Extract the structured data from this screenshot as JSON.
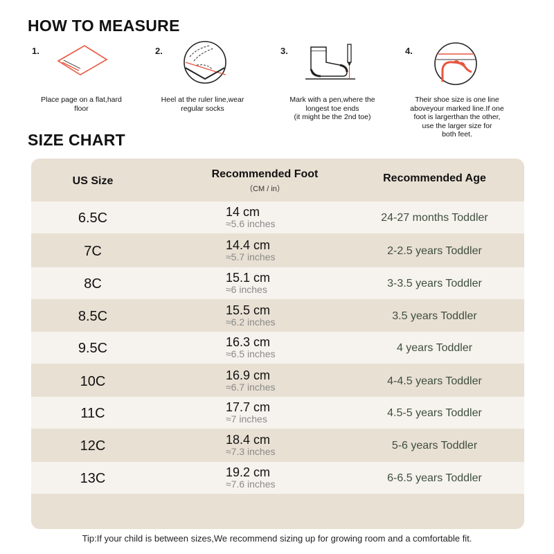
{
  "how_to_measure": {
    "title": "HOW TO MEASURE",
    "steps": [
      {
        "num": "1.",
        "icon": "paper-on-floor-icon",
        "lines": [
          "Place page on a flat,hard",
          "floor"
        ]
      },
      {
        "num": "2.",
        "icon": "heel-on-ruler-icon",
        "lines": [
          "Heel at the ruler line,wear",
          "regular socks"
        ]
      },
      {
        "num": "3.",
        "icon": "sock-and-pen-icon",
        "lines": [
          "Mark with a pen,where the",
          "longest toe ends",
          "(it might be the 2nd toe)"
        ]
      },
      {
        "num": "4.",
        "icon": "toe-line-icon",
        "lines": [
          "Their shoe size is one line",
          "aboveyour marked line.If one",
          "foot is largerthan the other,",
          "use the larger size for",
          "both feet."
        ]
      }
    ]
  },
  "size_chart": {
    "title": "SIZE CHART",
    "headers": {
      "size": "US Size",
      "foot": "Recommended Foot",
      "foot_sub": "（CM / in）",
      "age": "Recommended Age"
    },
    "rows": [
      {
        "size": "6.5C",
        "cm": "14 cm",
        "inch": "≈5.6 inches",
        "age": "24-27 months Toddler"
      },
      {
        "size": "7C",
        "cm": "14.4 cm",
        "inch": "≈5.7 inches",
        "age": "2-2.5 years Toddler"
      },
      {
        "size": "8C",
        "cm": "15.1 cm",
        "inch": "≈6 inches",
        "age": "3-3.5 years Toddler"
      },
      {
        "size": "8.5C",
        "cm": "15.5 cm",
        "inch": "≈6.2 inches",
        "age": "3.5 years Toddler"
      },
      {
        "size": "9.5C",
        "cm": "16.3 cm",
        "inch": "≈6.5 inches",
        "age": "4 years Toddler"
      },
      {
        "size": "10C",
        "cm": "16.9 cm",
        "inch": "≈6.7 inches",
        "age": "4-4.5 years Toddler"
      },
      {
        "size": "11C",
        "cm": "17.7 cm",
        "inch": "≈7 inches",
        "age": "4.5-5 years Toddler"
      },
      {
        "size": "12C",
        "cm": "18.4 cm",
        "inch": "≈7.3 inches",
        "age": "5-6 years Toddler"
      },
      {
        "size": "13C",
        "cm": "19.2 cm",
        "inch": "≈7.6 inches",
        "age": "6-6.5 years Toddler"
      }
    ]
  },
  "tip": "Tip:If your child is between sizes,We recommend sizing up for growing room and a comfortable fit.",
  "colors": {
    "panel": "#e8e0d3",
    "row_light": "#f6f3ee",
    "accent": "#e8553e",
    "age_text": "#3e4e3d"
  }
}
